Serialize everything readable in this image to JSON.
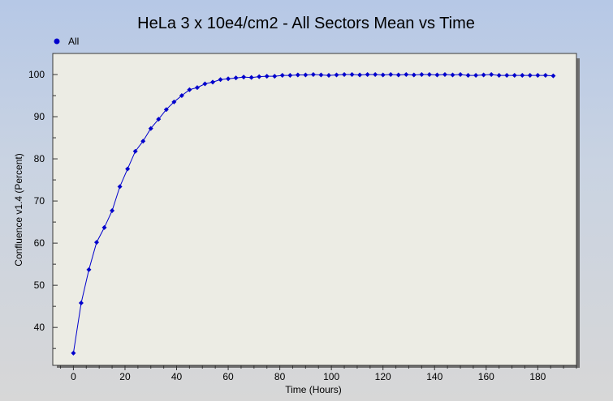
{
  "chart_data": {
    "type": "line",
    "title": "HeLa  3 x 10e4/cm2 - All Sectors Mean vs Time",
    "xlabel": "Time (Hours)",
    "ylabel": "Confluence v1.4 (Percent)",
    "xlim": [
      -8,
      195
    ],
    "ylim": [
      31,
      105
    ],
    "xticks": [
      0,
      20,
      40,
      60,
      80,
      100,
      120,
      140,
      160,
      180
    ],
    "yticks": [
      40,
      50,
      60,
      70,
      80,
      90,
      100
    ],
    "legend_position": "top-left",
    "grid": false,
    "colors": {
      "series": "#0000cc",
      "plot_bg": "#ecece4"
    },
    "series": [
      {
        "name": "All",
        "x": [
          0,
          3,
          6,
          9,
          12,
          15,
          18,
          21,
          24,
          27,
          30,
          33,
          36,
          39,
          42,
          45,
          48,
          51,
          54,
          57,
          60,
          63,
          66,
          69,
          72,
          75,
          78,
          81,
          84,
          87,
          90,
          93,
          96,
          99,
          102,
          105,
          108,
          111,
          114,
          117,
          120,
          123,
          126,
          129,
          132,
          135,
          138,
          141,
          144,
          147,
          150,
          153,
          156,
          159,
          162,
          165,
          168,
          171,
          174,
          177,
          180,
          183,
          186
        ],
        "y": [
          33.9,
          45.8,
          53.7,
          60.2,
          63.7,
          67.7,
          73.4,
          77.6,
          81.8,
          84.2,
          87.2,
          89.4,
          91.7,
          93.5,
          95.0,
          96.4,
          96.9,
          97.8,
          98.2,
          98.8,
          99.0,
          99.2,
          99.4,
          99.3,
          99.5,
          99.6,
          99.6,
          99.8,
          99.8,
          99.9,
          99.9,
          100.0,
          99.9,
          99.8,
          99.9,
          100.0,
          100.0,
          99.9,
          100.0,
          100.0,
          99.9,
          100.0,
          99.9,
          100.0,
          99.9,
          100.0,
          100.0,
          99.9,
          100.0,
          99.9,
          100.0,
          99.8,
          99.8,
          99.9,
          100.0,
          99.8,
          99.8,
          99.8,
          99.8,
          99.8,
          99.8,
          99.8,
          99.7
        ]
      }
    ]
  }
}
